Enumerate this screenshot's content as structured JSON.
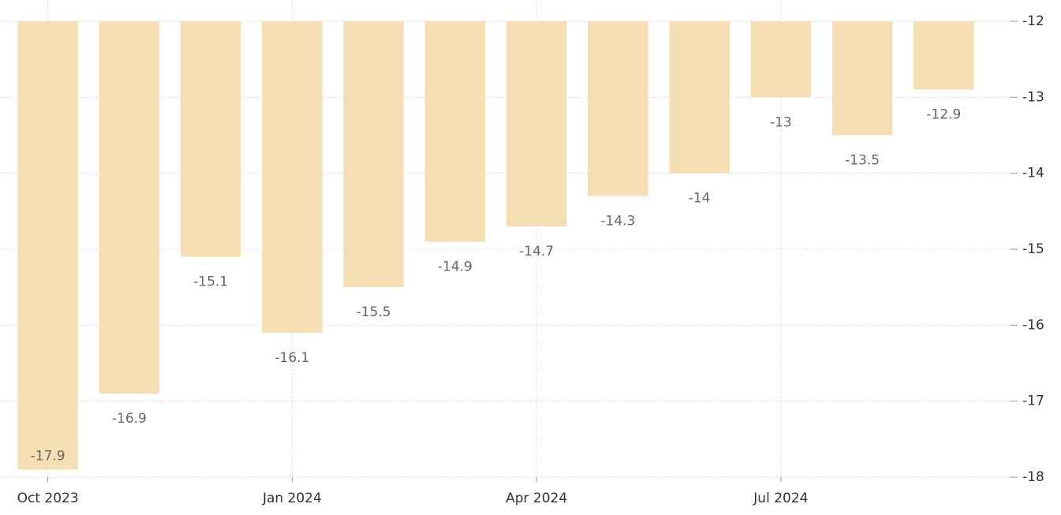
{
  "chart_data": {
    "type": "bar",
    "categories": [
      "Oct 2023",
      null,
      null,
      "Jan 2024",
      null,
      null,
      "Apr 2024",
      null,
      null,
      "Jul 2024",
      null,
      null
    ],
    "values": [
      -17.9,
      -16.9,
      -15.1,
      -16.1,
      -15.5,
      -14.9,
      -14.7,
      -14.3,
      -14,
      -13,
      -13.5,
      -12.9
    ],
    "color": "#f5deb3",
    "ylim": [
      -18,
      -12
    ],
    "yticks": [
      -18,
      -17,
      -16,
      -15,
      -14,
      -13,
      -12
    ],
    "grid": true
  }
}
